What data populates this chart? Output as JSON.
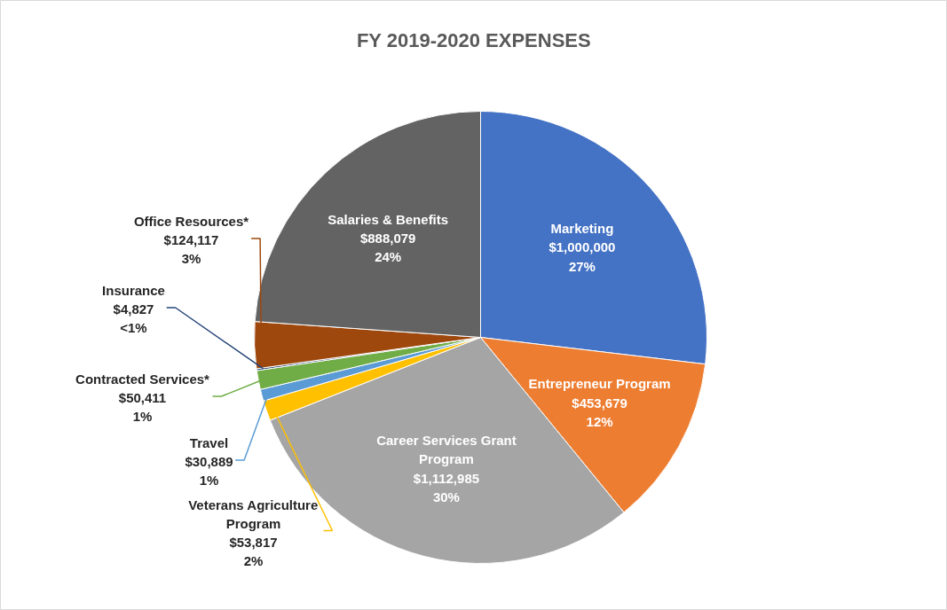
{
  "chart_data": {
    "type": "pie",
    "title": "FY 2019-2020 EXPENSES",
    "categories": [
      "Marketing",
      "Entrepreneur Program",
      "Career Services Grant Program",
      "Veterans Agriculture Program",
      "Travel",
      "Contracted Services*",
      "Insurance",
      "Office Resources*",
      "Salaries & Benefits"
    ],
    "values": [
      1000000,
      453679,
      1112985,
      53817,
      30889,
      50411,
      4827,
      124117,
      888079
    ],
    "colors": [
      "#4472c4",
      "#ed7d31",
      "#a5a5a5",
      "#ffc000",
      "#5b9bd5",
      "#70ad47",
      "#264478",
      "#9e480e",
      "#636363"
    ],
    "value_labels": [
      "$1,000,000\n27%",
      "$453,679\n12%",
      "$1,112,985\n30%",
      "$53,817\n2%",
      "$30,889\n1%",
      "$50,411\n1%",
      "$4,827\n<1%",
      "$124,117\n3%",
      "$888,079\n24%"
    ],
    "legend": false
  }
}
